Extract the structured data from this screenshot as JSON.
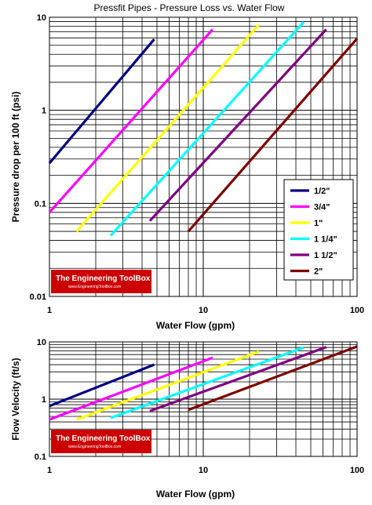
{
  "chart_data": [
    {
      "type": "line",
      "title": "Pressfit Pipes - Pressure Loss vs. Water Flow",
      "xlabel": "Water Flow (gpm)",
      "ylabel": "Pressure drop per 100 ft (psi)",
      "xscale": "log",
      "yscale": "log",
      "xlim": [
        1,
        100
      ],
      "ylim": [
        0.01,
        10
      ],
      "x_ticks": [
        "1",
        "10",
        "100"
      ],
      "y_ticks": [
        "0.01",
        "0.1",
        "1",
        "10"
      ],
      "grid": true,
      "legend_position": "right",
      "watermark": "The Engineering ToolBox",
      "watermark_sub": "www.EngineeringToolBox.com",
      "series": [
        {
          "name": "1/2\"",
          "color": "#000080",
          "x": [
            1.0,
            4.8
          ],
          "y": [
            0.27,
            5.8
          ]
        },
        {
          "name": "3/4\"",
          "color": "#ff00ff",
          "x": [
            1.0,
            11.5
          ],
          "y": [
            0.08,
            7.4
          ]
        },
        {
          "name": "1\"",
          "color": "#ffff00",
          "x": [
            1.5,
            23.0
          ],
          "y": [
            0.05,
            8.3
          ]
        },
        {
          "name": "1 1/4\"",
          "color": "#00ffff",
          "x": [
            2.5,
            45.0
          ],
          "y": [
            0.045,
            8.9
          ]
        },
        {
          "name": "1 1/2\"",
          "color": "#800080",
          "x": [
            4.5,
            63.0
          ],
          "y": [
            0.065,
            7.4
          ]
        },
        {
          "name": "2\"",
          "color": "#800000",
          "x": [
            8.0,
            100.0
          ],
          "y": [
            0.05,
            5.9
          ]
        }
      ]
    },
    {
      "type": "line",
      "title": "",
      "xlabel": "Water Flow (gpm)",
      "ylabel": "Flow Velocity (ft/s)",
      "xscale": "log",
      "yscale": "log",
      "xlim": [
        1,
        100
      ],
      "ylim": [
        0.1,
        10
      ],
      "x_ticks": [
        "1",
        "10",
        "100"
      ],
      "y_ticks": [
        "0.1",
        "1",
        "10"
      ],
      "grid": true,
      "watermark": "The Engineering ToolBox",
      "watermark_sub": "www.EngineeringToolBox.com",
      "series": [
        {
          "name": "1/2\"",
          "color": "#000080",
          "x": [
            1.0,
            4.8
          ],
          "y": [
            0.76,
            4.0
          ]
        },
        {
          "name": "3/4\"",
          "color": "#ff00ff",
          "x": [
            1.0,
            11.5
          ],
          "y": [
            0.44,
            5.3
          ]
        },
        {
          "name": "1\"",
          "color": "#ffff00",
          "x": [
            1.5,
            23.0
          ],
          "y": [
            0.44,
            6.8
          ]
        },
        {
          "name": "1 1/4\"",
          "color": "#00ffff",
          "x": [
            2.5,
            45.0
          ],
          "y": [
            0.47,
            8.0
          ]
        },
        {
          "name": "1 1/2\"",
          "color": "#800080",
          "x": [
            4.5,
            63.0
          ],
          "y": [
            0.62,
            8.1
          ]
        },
        {
          "name": "2\"",
          "color": "#800000",
          "x": [
            8.0,
            100.0
          ],
          "y": [
            0.65,
            8.3
          ]
        }
      ]
    }
  ]
}
